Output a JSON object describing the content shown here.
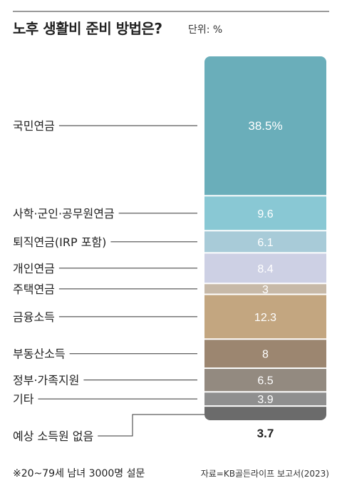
{
  "header": {
    "title": "노후 생활비 준비 방법은?",
    "unit": "단위: %"
  },
  "footer": {
    "note": "※20~79세 남녀 3000명 설문",
    "source": "자료=KB골든라이프 보고서(2023)"
  },
  "chart_data": {
    "type": "bar",
    "stacked": true,
    "categories": [
      "국민연금",
      "사학·군인·공무원연금",
      "퇴직연금(IRP 포함)",
      "개인연금",
      "주택연금",
      "금융소득",
      "부동산소득",
      "정부·가족지원",
      "기타",
      "예상 소득원 없음"
    ],
    "values": [
      38.5,
      9.6,
      6.1,
      8.4,
      3,
      12.3,
      8,
      6.5,
      3.9,
      3.7
    ],
    "value_labels": [
      "38.5%",
      "9.6",
      "6.1",
      "8.4",
      "3",
      "12.3",
      "8",
      "6.5",
      "3.9",
      "3.7"
    ],
    "colors": [
      "#6aaeba",
      "#89c8d4",
      "#a8cbd8",
      "#cdd0e4",
      "#c7b9a8",
      "#c3a680",
      "#9c8670",
      "#938a80",
      "#8f8f8f",
      "#6b6b6b"
    ],
    "label_colors": [
      "#ffffff",
      "#ffffff",
      "#ffffff",
      "#ffffff",
      "#ffffff",
      "#ffffff",
      "#ffffff",
      "#ffffff",
      "#ffffff",
      "#222222"
    ],
    "legend": "none"
  }
}
